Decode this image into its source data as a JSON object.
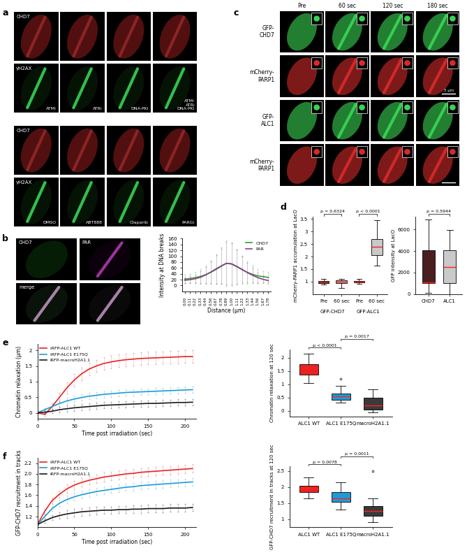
{
  "panel_labels": [
    "a",
    "b",
    "c",
    "d",
    "e",
    "f"
  ],
  "images": {
    "a": {
      "channels": [
        "CHD7",
        "γH2AX"
      ],
      "treatment_rows": [
        [
          "ATMi",
          "ATRi",
          "DNA-PKi",
          "ATMi\nATRi\nDNA-PKi"
        ],
        [
          "DMSO",
          "ABT888",
          "Olaparib",
          "PARGi"
        ]
      ]
    },
    "b": {
      "channels": [
        "CHD7",
        "PAR",
        "merge"
      ]
    },
    "c": {
      "columns": [
        "Pre",
        "60 sec",
        "120 sec",
        "180 sec"
      ],
      "rows": [
        "GFP-\nCHD7",
        "mCherry-\nPARP1",
        "GFP-\nALC1",
        "mCherry-\nPARP1"
      ],
      "scale_bar": "5 μm"
    }
  },
  "chart_data": [
    {
      "type": "line",
      "xlabel": "Distance (μm)",
      "ylabel": "Intensity at DNA breaks",
      "categories": [
        "0.00",
        "0.11",
        "0.22",
        "0.33",
        "0.44",
        "0.56",
        "0.67",
        "0.78",
        "0.89",
        "1.00",
        "1.11",
        "1.22",
        "1.33",
        "1.44",
        "1.56",
        "1.67",
        "1.78"
      ],
      "series": [
        {
          "name": "CHD7",
          "color": "#2ca02c",
          "values": [
            22,
            24,
            27,
            31,
            37,
            45,
            55,
            66,
            76,
            73,
            64,
            54,
            45,
            38,
            33,
            30,
            28
          ],
          "errors": [
            14,
            16,
            19,
            24,
            30,
            38,
            48,
            60,
            78,
            74,
            60,
            48,
            38,
            30,
            24,
            20,
            18
          ]
        },
        {
          "name": "PAR",
          "color": "#8e3a8e",
          "values": [
            18,
            20,
            23,
            28,
            36,
            46,
            57,
            67,
            76,
            74,
            65,
            55,
            44,
            35,
            27,
            21,
            17
          ],
          "errors": [
            10,
            12,
            15,
            20,
            28,
            38,
            50,
            62,
            72,
            70,
            58,
            45,
            34,
            25,
            18,
            13,
            10
          ]
        }
      ],
      "ylim": [
        -20,
        160
      ],
      "yticks": [
        0,
        20,
        40,
        60,
        80,
        100,
        120,
        140,
        160
      ],
      "legend": "upper right"
    },
    {
      "type": "box",
      "ylabel": "mCherry-PARP1 accumulation at LacO",
      "categories": [
        "Pre",
        "60 sec",
        "Pre",
        "60 sec"
      ],
      "groups": [
        {
          "name": "GFP-CHD7",
          "members": [
            0,
            1
          ]
        },
        {
          "name": "GFP-ALC1",
          "members": [
            2,
            3
          ]
        }
      ],
      "colors": [
        "#4a1f1f",
        "#c9a6a6",
        "#4a1f1f",
        "#c9c9c9"
      ],
      "boxes": [
        {
          "whislo": 0.88,
          "q1": 0.95,
          "med": 1.0,
          "q3": 1.03,
          "whishi": 1.1,
          "fliers": []
        },
        {
          "whislo": 0.75,
          "q1": 0.95,
          "med": 1.0,
          "q3": 1.05,
          "whishi": 1.12,
          "fliers": []
        },
        {
          "whislo": 0.9,
          "q1": 0.97,
          "med": 1.0,
          "q3": 1.03,
          "whishi": 1.1,
          "fliers": []
        },
        {
          "whislo": 1.65,
          "q1": 2.05,
          "med": 2.4,
          "q3": 2.7,
          "whishi": 3.45,
          "fliers": []
        }
      ],
      "ylim": [
        0.5,
        3.6
      ],
      "yticks": [
        1,
        1.5,
        2,
        2.5,
        3,
        3.5
      ],
      "comparisons": [
        {
          "groups": [
            0,
            1
          ],
          "label": "p = 0.6324"
        },
        {
          "groups": [
            2,
            3
          ],
          "label": "p < 0.0001"
        }
      ]
    },
    {
      "type": "box",
      "ylabel": "GFP intensity at LacO",
      "categories": [
        "CHD7",
        "ALC1"
      ],
      "colors": [
        "#4a1f1f",
        "#c9c9c9"
      ],
      "boxes": [
        {
          "whislo": 100,
          "q1": 1000,
          "med": 1100,
          "q3": 4050,
          "whishi": 6900,
          "fliers": []
        },
        {
          "whislo": 0,
          "q1": 1050,
          "med": 2500,
          "q3": 4100,
          "whishi": 5950,
          "fliers": []
        }
      ],
      "ylim": [
        0,
        7200
      ],
      "yticks": [
        0,
        2000,
        4000,
        6000
      ],
      "comparisons": [
        {
          "groups": [
            0,
            1
          ],
          "label": "p = 0.5944"
        }
      ]
    },
    {
      "type": "line",
      "xlabel": "Time post irradiation (sec)",
      "ylabel": "Chromatin relaxation (μm)",
      "x": [
        0,
        10,
        20,
        30,
        40,
        50,
        60,
        70,
        80,
        90,
        100,
        110,
        120,
        130,
        140,
        150,
        160,
        170,
        180,
        190,
        200,
        210
      ],
      "series": [
        {
          "name": "iRFP-ALC1 WT",
          "color": "#e8231f",
          "values": [
            0,
            -0.05,
            0.2,
            0.5,
            0.8,
            1.05,
            1.25,
            1.4,
            1.5,
            1.58,
            1.63,
            1.67,
            1.7,
            1.72,
            1.74,
            1.75,
            1.76,
            1.77,
            1.78,
            1.79,
            1.8,
            1.8
          ],
          "errors": [
            0,
            0.05,
            0.1,
            0.15,
            0.18,
            0.2,
            0.2,
            0.2,
            0.2,
            0.2,
            0.2,
            0.2,
            0.2,
            0.2,
            0.2,
            0.2,
            0.2,
            0.2,
            0.2,
            0.2,
            0.2,
            0.2
          ]
        },
        {
          "name": "iRFP-ALC1 E175Q",
          "color": "#1f9ad6",
          "values": [
            0,
            0.1,
            0.2,
            0.3,
            0.38,
            0.44,
            0.49,
            0.53,
            0.56,
            0.59,
            0.61,
            0.63,
            0.65,
            0.66,
            0.67,
            0.68,
            0.69,
            0.7,
            0.71,
            0.72,
            0.73,
            0.74
          ],
          "errors": [
            0,
            0.05,
            0.08,
            0.1,
            0.1,
            0.1,
            0.1,
            0.1,
            0.1,
            0.1,
            0.1,
            0.1,
            0.1,
            0.1,
            0.1,
            0.1,
            0.1,
            0.1,
            0.1,
            0.1,
            0.1,
            0.1
          ]
        },
        {
          "name": "iRFP-macroH2A1.1",
          "color": "#1a1a1a",
          "values": [
            0,
            0.02,
            0.05,
            0.1,
            0.13,
            0.16,
            0.18,
            0.2,
            0.22,
            0.24,
            0.25,
            0.26,
            0.27,
            0.28,
            0.29,
            0.3,
            0.3,
            0.31,
            0.32,
            0.33,
            0.33,
            0.34
          ],
          "errors": [
            0,
            0.05,
            0.06,
            0.08,
            0.1,
            0.1,
            0.1,
            0.1,
            0.1,
            0.1,
            0.1,
            0.1,
            0.1,
            0.1,
            0.1,
            0.1,
            0.1,
            0.1,
            0.1,
            0.1,
            0.1,
            0.1
          ]
        }
      ],
      "xlim": [
        0,
        215
      ],
      "xticks": [
        0,
        50,
        100,
        150,
        200
      ],
      "ylim": [
        -0.2,
        2.2
      ],
      "yticks": [
        0,
        0.5,
        1,
        1.5,
        2
      ],
      "legend": "upper left"
    },
    {
      "type": "box",
      "ylabel": "Chromatin relaxation at 120 sec",
      "categories": [
        "ALC1 WT",
        "ALC1 E175Q",
        "macroH2A1.1"
      ],
      "colors": [
        "#e8231f",
        "#1f9ad6",
        "#3a3a3a"
      ],
      "boxes": [
        {
          "whislo": 1.05,
          "q1": 1.35,
          "med": 1.62,
          "q3": 1.75,
          "whishi": 2.15,
          "fliers": []
        },
        {
          "whislo": 0.3,
          "q1": 0.42,
          "med": 0.55,
          "q3": 0.65,
          "whishi": 0.95,
          "fliers": [
            1.2
          ]
        },
        {
          "whislo": -0.05,
          "q1": 0.05,
          "med": 0.2,
          "q3": 0.5,
          "whishi": 0.82,
          "fliers": []
        }
      ],
      "ylim": [
        -0.2,
        2.3
      ],
      "yticks": [
        0,
        0.5,
        1,
        1.5,
        2
      ],
      "comparisons": [
        {
          "groups": [
            0,
            1
          ],
          "label": "p < 0.0001"
        },
        {
          "groups": [
            1,
            2
          ],
          "label": "p = 0.0017"
        }
      ]
    },
    {
      "type": "line",
      "xlabel": "Time post irradiation (sec)",
      "ylabel": "GFP-CHD7 recruitment in tracks",
      "x": [
        0,
        10,
        20,
        30,
        40,
        50,
        60,
        70,
        80,
        90,
        100,
        110,
        120,
        130,
        140,
        150,
        160,
        170,
        180,
        190,
        200,
        210
      ],
      "series": [
        {
          "name": "iRFP-ALC1 WT",
          "color": "#e8231f",
          "values": [
            1.05,
            1.3,
            1.5,
            1.62,
            1.72,
            1.79,
            1.84,
            1.88,
            1.91,
            1.94,
            1.96,
            1.98,
            2.0,
            2.01,
            2.03,
            2.04,
            2.05,
            2.06,
            2.07,
            2.08,
            2.09,
            2.1
          ],
          "errors": [
            0,
            0.05,
            0.06,
            0.07,
            0.08,
            0.08,
            0.08,
            0.08,
            0.08,
            0.08,
            0.08,
            0.08,
            0.08,
            0.08,
            0.08,
            0.08,
            0.08,
            0.08,
            0.08,
            0.08,
            0.08,
            0.08
          ]
        },
        {
          "name": "iRFP-ALC1 E175Q",
          "color": "#1f9ad6",
          "values": [
            1.05,
            1.2,
            1.35,
            1.45,
            1.52,
            1.57,
            1.61,
            1.64,
            1.67,
            1.69,
            1.71,
            1.73,
            1.75,
            1.76,
            1.78,
            1.79,
            1.8,
            1.81,
            1.82,
            1.83,
            1.84,
            1.85
          ],
          "errors": [
            0,
            0.04,
            0.05,
            0.06,
            0.07,
            0.07,
            0.07,
            0.07,
            0.07,
            0.07,
            0.07,
            0.07,
            0.07,
            0.07,
            0.07,
            0.07,
            0.07,
            0.07,
            0.07,
            0.07,
            0.07,
            0.07
          ]
        },
        {
          "name": "iRFP-macroH2A1.1",
          "color": "#1a1a1a",
          "values": [
            1.05,
            1.12,
            1.18,
            1.22,
            1.25,
            1.27,
            1.29,
            1.3,
            1.31,
            1.32,
            1.32,
            1.33,
            1.33,
            1.34,
            1.34,
            1.35,
            1.35,
            1.35,
            1.36,
            1.36,
            1.36,
            1.37
          ],
          "errors": [
            0,
            0.04,
            0.05,
            0.06,
            0.07,
            0.07,
            0.07,
            0.07,
            0.07,
            0.07,
            0.07,
            0.07,
            0.07,
            0.07,
            0.07,
            0.07,
            0.07,
            0.07,
            0.07,
            0.07,
            0.07,
            0.07
          ]
        }
      ],
      "xlim": [
        0,
        215
      ],
      "xticks": [
        0,
        50,
        100,
        150,
        200
      ],
      "ylim": [
        1.0,
        2.3
      ],
      "yticks": [
        1.2,
        1.4,
        1.6,
        1.8,
        2.0,
        2.2
      ],
      "legend": "upper left"
    },
    {
      "type": "box",
      "ylabel": "GFP-CHD7 recruitment in tracks at 120 sec",
      "categories": [
        "ALC1 WT",
        "ALC1 E175Q",
        "macroH2A1.1"
      ],
      "colors": [
        "#e8231f",
        "#1f9ad6",
        "#3a3a3a"
      ],
      "boxes": [
        {
          "whislo": 1.65,
          "q1": 1.85,
          "med": 1.95,
          "q3": 2.05,
          "whishi": 2.3,
          "fliers": []
        },
        {
          "whislo": 1.3,
          "q1": 1.55,
          "med": 1.65,
          "q3": 1.85,
          "whishi": 2.15,
          "fliers": []
        },
        {
          "whislo": 0.9,
          "q1": 1.1,
          "med": 1.25,
          "q3": 1.4,
          "whishi": 1.65,
          "fliers": [
            2.5
          ]
        }
      ],
      "ylim": [
        0.75,
        2.65
      ],
      "yticks": [
        1,
        1.5,
        2,
        2.5
      ],
      "comparisons": [
        {
          "groups": [
            0,
            1
          ],
          "label": "p = 0.0078"
        },
        {
          "groups": [
            1,
            2
          ],
          "label": "p = 0.0011"
        }
      ]
    }
  ]
}
